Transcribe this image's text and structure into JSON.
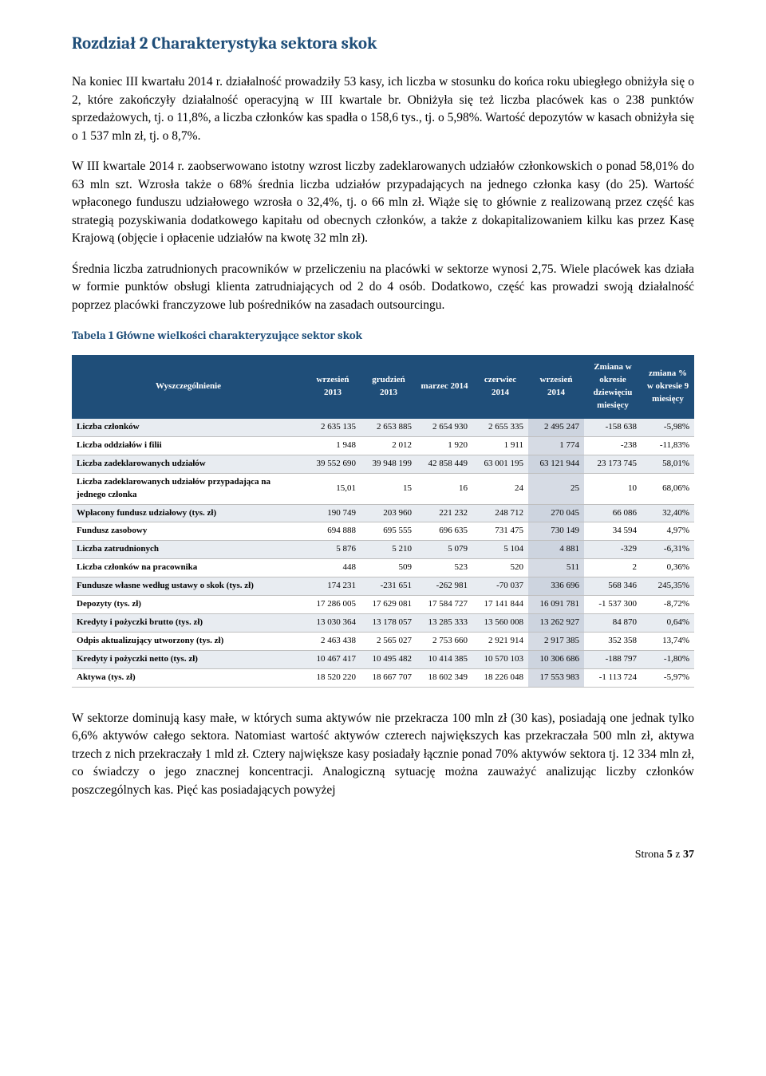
{
  "chapterTitle": "Rozdział 2 Charakterystyka sektora skok",
  "paragraphs": {
    "p1": "Na koniec III kwartału 2014 r. działalność prowadziły 53 kasy, ich liczba w stosunku do końca roku ubiegłego obniżyła się o 2, które zakończyły działalność operacyjną w III kwartale br. Obniżyła się też liczba placówek kas o 238 punktów sprzedażowych, tj. o 11,8%, a liczba członków kas spadła o 158,6 tys., tj. o 5,98%. Wartość depozytów w kasach obniżyła się o 1 537 mln zł, tj. o 8,7%.",
    "p2": "W III kwartale 2014 r. zaobserwowano istotny wzrost liczby zadeklarowanych udziałów członkowskich o ponad 58,01% do 63 mln szt. Wzrosła także o 68% średnia liczba udziałów przypadających na jednego członka kasy (do 25). Wartość wpłaconego funduszu udziałowego wzrosła o 32,4%, tj. o 66 mln zł. Wiąże się to głównie z realizowaną przez część kas strategią pozyskiwania dodatkowego kapitału od obecnych członków, a także z dokapitalizowaniem kilku kas przez Kasę Krajową (objęcie i opłacenie udziałów na kwotę 32 mln zł).",
    "p3": "Średnia liczba zatrudnionych pracowników w przeliczeniu na placówki w sektorze wynosi 2,75. Wiele placówek kas działa w formie punktów obsługi klienta zatrudniających od 2 do 4 osób. Dodatkowo, część kas prowadzi swoją działalność poprzez placówki franczyzowe lub pośredników na zasadach outsourcingu.",
    "p4": "W sektorze dominują kasy małe, w których suma aktywów nie przekracza 100 mln zł (30 kas), posiadają one jednak tylko 6,6% aktywów całego sektora. Natomiast wartość aktywów czterech największych kas przekraczała 500 mln zł, aktywa trzech z nich przekraczały 1 mld zł. Cztery największe kasy posiadały łącznie ponad 70% aktywów sektora tj. 12 334 mln zł, co świadczy o jego znacznej koncentracji. Analogiczną sytuację można zauważyć analizując liczby członków poszczególnych kas. Pięć kas posiadających powyżej"
  },
  "tableCaption": "Tabela 1 Główne wielkości charakteryzujące sektor skok",
  "table": {
    "columns": [
      "Wyszczególnienie",
      "wrzesień 2013",
      "grudzień 2013",
      "marzec 2014",
      "czerwiec 2014",
      "wrzesień 2014",
      "Zmiana w okresie dziewięciu miesięcy",
      "zmiana % w okresie 9 miesięcy"
    ],
    "rows": [
      [
        "Liczba członków",
        "2 635 135",
        "2 653 885",
        "2 654 930",
        "2 655 335",
        "2 495 247",
        "-158 638",
        "-5,98%"
      ],
      [
        "Liczba oddziałów i filii",
        "1 948",
        "2 012",
        "1 920",
        "1 911",
        "1 774",
        "-238",
        "-11,83%"
      ],
      [
        "Liczba zadeklarowanych udziałów",
        "39 552 690",
        "39 948 199",
        "42 858 449",
        "63 001 195",
        "63 121 944",
        "23 173 745",
        "58,01%"
      ],
      [
        "Liczba zadeklarowanych udziałów przypadająca na jednego członka",
        "15,01",
        "15",
        "16",
        "24",
        "25",
        "10",
        "68,06%"
      ],
      [
        "Wpłacony fundusz udziałowy (tys. zł)",
        "190 749",
        "203 960",
        "221 232",
        "248 712",
        "270 045",
        "66 086",
        "32,40%"
      ],
      [
        "Fundusz zasobowy",
        "694 888",
        "695 555",
        "696 635",
        "731 475",
        "730 149",
        "34 594",
        "4,97%"
      ],
      [
        "Liczba zatrudnionych",
        "5 876",
        "5 210",
        "5 079",
        "5 104",
        "4 881",
        "-329",
        "-6,31%"
      ],
      [
        "Liczba członków na pracownika",
        "448",
        "509",
        "523",
        "520",
        "511",
        "2",
        "0,36%"
      ],
      [
        "Fundusze własne według ustawy o skok (tys. zł)",
        "174 231",
        "-231 651",
        "-262 981",
        "-70 037",
        "336 696",
        "568 346",
        "245,35%"
      ],
      [
        "Depozyty (tys. zł)",
        "17 286 005",
        "17 629 081",
        "17 584 727",
        "17 141 844",
        "16 091 781",
        "-1 537 300",
        "-8,72%"
      ],
      [
        "Kredyty i pożyczki brutto (tys. zł)",
        "13 030 364",
        "13 178 057",
        "13 285 333",
        "13 560 008",
        "13 262 927",
        "84 870",
        "0,64%"
      ],
      [
        "Odpis aktualizujący utworzony (tys. zł)",
        "2 463 438",
        "2 565 027",
        "2 753 660",
        "2 921 914",
        "2 917 385",
        "352 358",
        "13,74%"
      ],
      [
        "Kredyty i pożyczki netto (tys. zł)",
        "10 467 417",
        "10 495 482",
        "10 414 385",
        "10 570 103",
        "10 306 686",
        "-188 797",
        "-1,80%"
      ],
      [
        "Aktywa (tys. zł)",
        "18 520 220",
        "18 667 707",
        "18 602 349",
        "18 226 048",
        "17 553 983",
        "-1 113 724",
        "-5,97%"
      ]
    ],
    "altRows": [
      true,
      false,
      true,
      false,
      true,
      false,
      true,
      false,
      true,
      false,
      true,
      false,
      true,
      false
    ],
    "highlightColIndex": 5
  },
  "footer": {
    "prefix": "Strona ",
    "pageNum": "5",
    "of": " z ",
    "total": "37"
  },
  "colors": {
    "heading": "#1f4e79",
    "tableHeaderBg": "#1f4e79",
    "tableAltBg": "#e8ecf1",
    "tableHighlightBg": "#d6dbe4",
    "tableBorder": "#bfbfbf"
  }
}
